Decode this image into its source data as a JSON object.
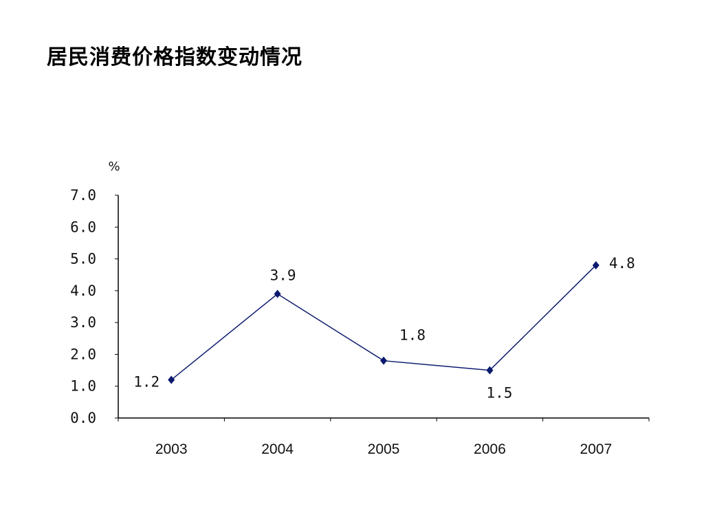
{
  "page": {
    "title": "居民消费价格指数变动情况"
  },
  "chart_data": {
    "type": "line",
    "title": "居民消费价格指数变动情况",
    "unit": "%",
    "categories": [
      "2003",
      "2004",
      "2005",
      "2006",
      "2007"
    ],
    "series": [
      {
        "values": [
          1.2,
          3.9,
          1.8,
          1.5,
          4.8
        ],
        "color": "#0b1a6e"
      }
    ],
    "data_labels": [
      "1.2",
      "3.9",
      "1.8",
      "1.5",
      "4.8"
    ],
    "ylim": [
      0,
      7
    ],
    "y_ticks": [
      "0.0",
      "1.0",
      "2.0",
      "3.0",
      "4.0",
      "5.0",
      "6.0",
      "7.0"
    ],
    "grid": false,
    "legend": "none"
  }
}
